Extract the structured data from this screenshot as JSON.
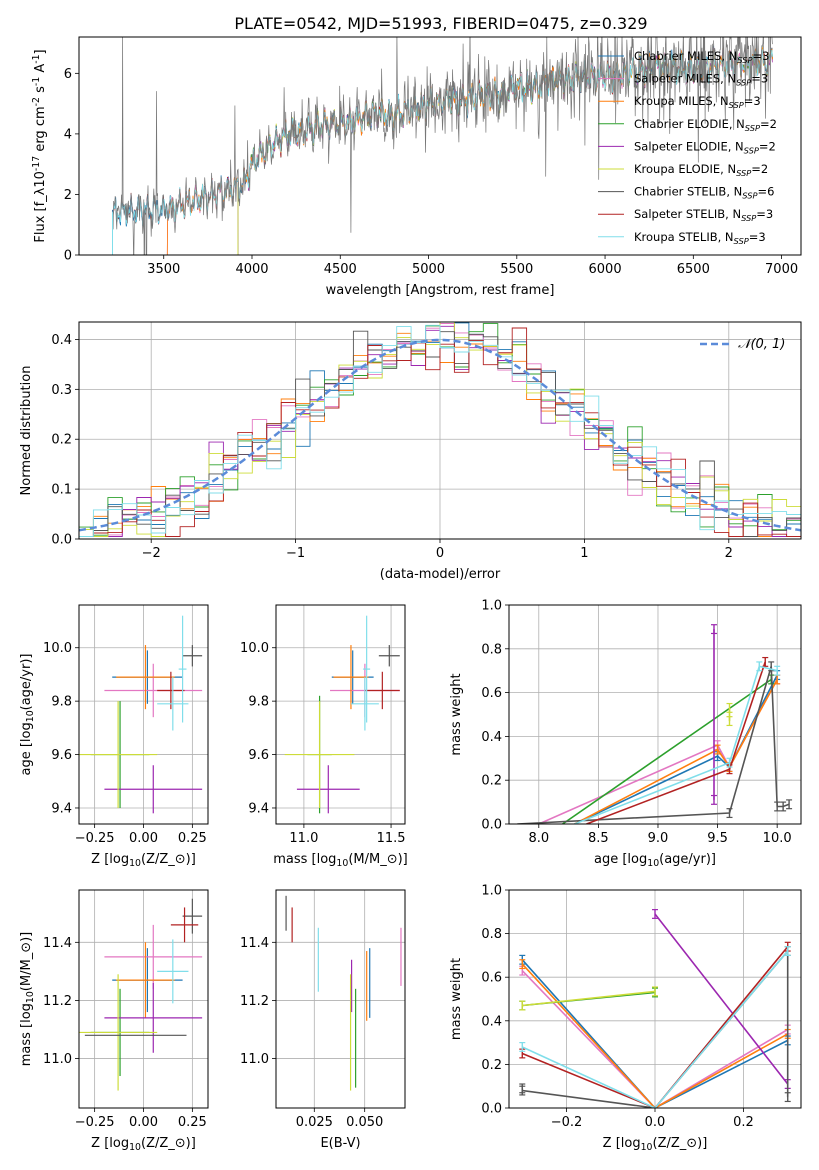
{
  "figure": {
    "title": "PLATE=0542, MJD=51993, FIBERID=0475, z=0.329"
  },
  "models": [
    {
      "label": "Chabrier MILES, N$_{SSP}$=3",
      "name": "Chabrier MILES",
      "nssp": "3",
      "color": "#1f77b4"
    },
    {
      "label": "Salpeter MILES, N$_{SSP}$=3",
      "name": "Salpeter MILES",
      "nssp": "3",
      "color": "#e377c2"
    },
    {
      "label": "Kroupa MILES, N$_{SSP}$=3",
      "name": "Kroupa MILES",
      "nssp": "3",
      "color": "#ff7f0e"
    },
    {
      "label": "Chabrier ELODIE, N$_{SSP}$=2",
      "name": "Chabrier ELODIE",
      "nssp": "2",
      "color": "#2ca02c"
    },
    {
      "label": "Salpeter ELODIE, N$_{SSP}$=2",
      "name": "Salpeter ELODIE",
      "nssp": "2",
      "color": "#9c27b0"
    },
    {
      "label": "Kroupa ELODIE, N$_{SSP}$=2",
      "name": "Kroupa ELODIE",
      "nssp": "2",
      "color": "#cddc39"
    },
    {
      "label": "Chabrier STELIB, N$_{SSP}$=6",
      "name": "Chabrier STELIB",
      "nssp": "6",
      "color": "#555555"
    },
    {
      "label": "Salpeter STELIB, N$_{SSP}$=3",
      "name": "Salpeter STELIB",
      "nssp": "3",
      "color": "#b22222"
    },
    {
      "label": "Kroupa STELIB, N$_{SSP}$=3",
      "name": "Kroupa STELIB",
      "nssp": "3",
      "color": "#80deea"
    }
  ],
  "chart_data": [
    {
      "id": "spectrum",
      "type": "line",
      "xlabel": "wavelength [Angstrom, rest frame]",
      "ylabel": "Flux [f$_\\lambda$10$^{-17}$ erg cm$^{-2}$ s$^{-1}$ A$^{-1}$]",
      "xlim": [
        3020,
        7110
      ],
      "ylim": [
        0,
        7.2
      ],
      "xticks": [
        3500,
        4000,
        4500,
        5000,
        5500,
        6000,
        6500,
        7000
      ],
      "yticks": [
        0,
        2,
        4,
        6
      ],
      "legend": "top-right",
      "continuum": {
        "x": [
          3210,
          3300,
          3400,
          3500,
          3600,
          3700,
          3800,
          3900,
          3950,
          4000,
          4100,
          4200,
          4300,
          4400,
          4500,
          4600,
          4700,
          4800,
          4900,
          5000,
          5100,
          5200,
          5300,
          5400,
          5500,
          5600,
          5700,
          5800,
          5900,
          6000,
          6100,
          6200,
          6300,
          6400,
          6500,
          6600,
          6700,
          6800,
          6900
        ],
        "y": [
          1.4,
          1.45,
          1.5,
          1.5,
          1.65,
          1.85,
          2.05,
          2.2,
          2.3,
          3.0,
          3.6,
          4.0,
          4.1,
          4.3,
          4.35,
          4.45,
          4.7,
          4.6,
          4.8,
          5.0,
          5.1,
          5.1,
          5.3,
          5.3,
          5.55,
          5.5,
          5.8,
          5.8,
          5.9,
          5.9,
          6.0,
          6.1,
          6.2,
          6.2,
          6.1,
          6.25,
          6.3,
          6.3,
          6.4
        ]
      },
      "model_start_wavelength": [
        3210,
        3520,
        3520,
        3920,
        3920,
        3920,
        3210,
        3210,
        3210
      ]
    },
    {
      "id": "residuals",
      "type": "histogram",
      "xlabel": "(data-model)/error",
      "ylabel": "Normed distribution",
      "xlim": [
        -2.5,
        2.5
      ],
      "ylim": [
        0,
        0.435
      ],
      "xticks": [
        -2,
        -1,
        0,
        1,
        2
      ],
      "yticks": [
        0.0,
        0.1,
        0.2,
        0.3,
        0.4
      ],
      "bin_width": 0.1,
      "reference_curve": {
        "name": "$\\mathcal{N}(0,1)$",
        "label": "𝒩(0, 1)",
        "color": "#5b8bd9",
        "mu": 0,
        "sigma": 1
      },
      "legend": "top-right",
      "grid": true
    },
    {
      "id": "age-vs-Z",
      "type": "errorbar",
      "xlabel": "Z [log$_{10}$(Z/Z$_\\odot$)]",
      "ylabel": "age  [log$_{10}$(age/yr)]",
      "xlim": [
        -0.33,
        0.33
      ],
      "ylim": [
        9.34,
        10.16
      ],
      "xticks": [
        -0.25,
        0.0,
        0.25
      ],
      "yticks": [
        9.4,
        9.6,
        9.8,
        10.0
      ],
      "grid": true,
      "points": [
        {
          "model": 0,
          "x": 0.02,
          "y": 9.89,
          "xerr": 0.18,
          "yerr": 0.1
        },
        {
          "model": 1,
          "x": 0.05,
          "y": 9.84,
          "xerr": 0.25,
          "yerr": 0.1
        },
        {
          "model": 2,
          "x": 0.01,
          "y": 9.89,
          "xerr": 0.15,
          "yerr": 0.12
        },
        {
          "model": 3,
          "x": -0.12,
          "y": 9.6,
          "xerr": 0.15,
          "yerr": 0.2
        },
        {
          "model": 4,
          "x": 0.05,
          "y": 9.47,
          "xerr": 0.25,
          "yerr": 0.09
        },
        {
          "model": 5,
          "x": -0.13,
          "y": 9.6,
          "xerr": 0.2,
          "yerr": 0.2
        },
        {
          "model": 6,
          "x": 0.25,
          "y": 9.97,
          "xerr": 0.05,
          "yerr": 0.04
        },
        {
          "model": 7,
          "x": 0.14,
          "y": 9.84,
          "xerr": 0.07,
          "yerr": 0.07
        },
        {
          "model": 8,
          "x": 0.15,
          "y": 9.79,
          "xerr": 0.08,
          "yerr": 0.1
        },
        {
          "model": 8,
          "x": 0.2,
          "y": 9.92,
          "xerr": 0.02,
          "yerr": 0.2
        }
      ]
    },
    {
      "id": "age-vs-mass",
      "type": "errorbar",
      "xlabel": "mass [log$_{10}$(M/M$_\\odot$)]",
      "ylabel": "",
      "xlim": [
        10.84,
        11.58
      ],
      "ylim": [
        9.34,
        10.16
      ],
      "xticks": [
        11.0,
        11.5
      ],
      "yticks": [
        9.4,
        9.6,
        9.8,
        10.0
      ],
      "grid": true,
      "points": [
        {
          "model": 0,
          "x": 11.28,
          "y": 9.89,
          "xerr": 0.12,
          "yerr": 0.1
        },
        {
          "model": 1,
          "x": 11.35,
          "y": 9.84,
          "xerr": 0.2,
          "yerr": 0.1
        },
        {
          "model": 2,
          "x": 11.27,
          "y": 9.89,
          "xerr": 0.1,
          "yerr": 0.12
        },
        {
          "model": 3,
          "x": 11.09,
          "y": 9.6,
          "xerr": 0.07,
          "yerr": 0.22
        },
        {
          "model": 4,
          "x": 11.14,
          "y": 9.47,
          "xerr": 0.18,
          "yerr": 0.09
        },
        {
          "model": 5,
          "x": 11.09,
          "y": 9.6,
          "xerr": 0.2,
          "yerr": 0.2
        },
        {
          "model": 6,
          "x": 11.49,
          "y": 9.97,
          "xerr": 0.06,
          "yerr": 0.04
        },
        {
          "model": 7,
          "x": 11.45,
          "y": 9.84,
          "xerr": 0.1,
          "yerr": 0.07
        },
        {
          "model": 8,
          "x": 11.35,
          "y": 9.79,
          "xerr": 0.08,
          "yerr": 0.1
        },
        {
          "model": 8,
          "x": 11.36,
          "y": 9.92,
          "xerr": 0.02,
          "yerr": 0.2
        }
      ]
    },
    {
      "id": "massweight-vs-age",
      "type": "line",
      "xlabel": "age  [log$_{10}$(age/yr)]",
      "ylabel": "mass weight",
      "xlim": [
        7.75,
        10.2
      ],
      "ylim": [
        0,
        1.0
      ],
      "xticks": [
        8.0,
        8.5,
        9.0,
        9.5,
        10.0
      ],
      "yticks": [
        0.0,
        0.2,
        0.4,
        0.6,
        0.8,
        1.0
      ],
      "grid": true,
      "series": [
        {
          "model": 0,
          "x": [
            8.3,
            9.5,
            9.6,
            10.0
          ],
          "y": [
            0.0,
            0.31,
            0.26,
            0.68
          ],
          "yerr": [
            0,
            0.02,
            0.02,
            0.02
          ]
        },
        {
          "model": 1,
          "x": [
            8.0,
            9.5,
            9.6,
            10.0
          ],
          "y": [
            0.0,
            0.36,
            0.26,
            0.66
          ],
          "yerr": [
            0,
            0.02,
            0.02,
            0.02
          ]
        },
        {
          "model": 2,
          "x": [
            8.3,
            9.5,
            9.6,
            10.0
          ],
          "y": [
            0.0,
            0.34,
            0.26,
            0.66
          ],
          "yerr": [
            0,
            0.02,
            0.02,
            0.02
          ]
        },
        {
          "model": 3,
          "x": [
            8.2,
            9.95
          ],
          "y": [
            0.0,
            0.66
          ],
          "yerr": [
            0,
            0.02
          ]
        },
        {
          "model": 4,
          "x": [
            9.47,
            9.47
          ],
          "y": [
            0.11,
            0.89
          ],
          "yerr": [
            0.02,
            0.02
          ]
        },
        {
          "model": 5,
          "x": [
            9.6,
            9.6
          ],
          "y": [
            0.47,
            0.53
          ],
          "yerr": [
            0.02,
            0.02
          ]
        },
        {
          "model": 6,
          "x": [
            7.82,
            9.6,
            9.95,
            10.0,
            10.05,
            10.1
          ],
          "y": [
            0.0,
            0.05,
            0.72,
            0.08,
            0.08,
            0.09
          ],
          "yerr": [
            0,
            0.02,
            0.02,
            0.02,
            0.02,
            0.02
          ]
        },
        {
          "model": 7,
          "x": [
            8.4,
            9.6,
            9.9
          ],
          "y": [
            0.0,
            0.25,
            0.74
          ],
          "yerr": [
            0,
            0.02,
            0.02
          ]
        },
        {
          "model": 8,
          "x": [
            8.3,
            9.6,
            9.85,
            10.0
          ],
          "y": [
            0.0,
            0.28,
            0.72,
            0.7
          ],
          "yerr": [
            0,
            0.02,
            0.02,
            0.02
          ]
        }
      ]
    },
    {
      "id": "mass-vs-Z",
      "type": "errorbar",
      "xlabel": "Z [log$_{10}$(Z/Z$_\\odot$)]",
      "ylabel": "mass [log$_{10}$(M/M$_\\odot$)]",
      "xlim": [
        -0.33,
        0.33
      ],
      "ylim": [
        10.83,
        11.58
      ],
      "xticks": [
        -0.25,
        0.0,
        0.25
      ],
      "yticks": [
        11.0,
        11.2,
        11.4
      ],
      "grid": true,
      "points": [
        {
          "model": 0,
          "x": 0.02,
          "y": 11.27,
          "xerr": 0.18,
          "yerr": 0.11
        },
        {
          "model": 1,
          "x": 0.05,
          "y": 11.35,
          "xerr": 0.25,
          "yerr": 0.11
        },
        {
          "model": 2,
          "x": 0.01,
          "y": 11.27,
          "xerr": 0.15,
          "yerr": 0.13
        },
        {
          "model": 3,
          "x": -0.12,
          "y": 11.09,
          "xerr": 0.15,
          "yerr": 0.15
        },
        {
          "model": 4,
          "x": 0.05,
          "y": 11.14,
          "xerr": 0.25,
          "yerr": 0.12
        },
        {
          "model": 5,
          "x": -0.13,
          "y": 11.09,
          "xerr": 0.2,
          "yerr": 0.2
        },
        {
          "model": 6,
          "x": 0.25,
          "y": 11.49,
          "xerr": 0.05,
          "yerr": 0.06
        },
        {
          "model": 6,
          "x": -0.04,
          "y": 11.08,
          "xerr": 0.26,
          "yerr": 0.0
        },
        {
          "model": 7,
          "x": 0.21,
          "y": 11.46,
          "xerr": 0.07,
          "yerr": 0.06
        },
        {
          "model": 8,
          "x": 0.15,
          "y": 11.3,
          "xerr": 0.08,
          "yerr": 0.11
        }
      ]
    },
    {
      "id": "mass-vs-ebv",
      "type": "errorbar",
      "xlabel": "E(B-V)",
      "ylabel": "",
      "xlim": [
        0.006,
        0.07
      ],
      "ylim": [
        10.83,
        11.58
      ],
      "xticks": [
        0.025,
        0.05
      ],
      "xticklabels": [
        "0.025",
        "0.050"
      ],
      "yticks": [
        11.0,
        11.2,
        11.4
      ],
      "grid": true,
      "points": [
        {
          "model": 0,
          "x": 0.0525,
          "y": 11.26,
          "xerr": 0.0,
          "yerr": 0.12
        },
        {
          "model": 1,
          "x": 0.068,
          "y": 11.35,
          "xerr": 0.0,
          "yerr": 0.1
        },
        {
          "model": 2,
          "x": 0.051,
          "y": 11.25,
          "xerr": 0.0,
          "yerr": 0.12
        },
        {
          "model": 3,
          "x": 0.0455,
          "y": 11.07,
          "xerr": 0.0,
          "yerr": 0.17
        },
        {
          "model": 4,
          "x": 0.0435,
          "y": 11.25,
          "xerr": 0.0,
          "yerr": 0.09
        },
        {
          "model": 5,
          "x": 0.043,
          "y": 11.09,
          "xerr": 0.0,
          "yerr": 0.2
        },
        {
          "model": 6,
          "x": 0.011,
          "y": 11.5,
          "xerr": 0.0,
          "yerr": 0.06
        },
        {
          "model": 7,
          "x": 0.014,
          "y": 11.46,
          "xerr": 0.0,
          "yerr": 0.06
        },
        {
          "model": 8,
          "x": 0.027,
          "y": 11.34,
          "xerr": 0.0,
          "yerr": 0.11
        }
      ]
    },
    {
      "id": "massweight-vs-Z",
      "type": "line",
      "xlabel": "Z [log$_{10}$(Z/Z$_\\odot$)]",
      "ylabel": "mass weight",
      "xlim": [
        -0.33,
        0.33
      ],
      "ylim": [
        0,
        1.0
      ],
      "xticks": [
        -0.2,
        0.0,
        0.2
      ],
      "yticks": [
        0.0,
        0.2,
        0.4,
        0.6,
        0.8,
        1.0
      ],
      "grid": true,
      "series": [
        {
          "model": 0,
          "x": [
            -0.3,
            0.0,
            0.3
          ],
          "y": [
            0.68,
            0.0,
            0.31
          ],
          "yerr": [
            0.02,
            0,
            0.02
          ]
        },
        {
          "model": 1,
          "x": [
            -0.3,
            0.0,
            0.3
          ],
          "y": [
            0.63,
            0.0,
            0.36
          ],
          "yerr": [
            0.02,
            0,
            0.02
          ]
        },
        {
          "model": 2,
          "x": [
            -0.3,
            0.0,
            0.3
          ],
          "y": [
            0.66,
            0.0,
            0.34
          ],
          "yerr": [
            0.02,
            0,
            0.02
          ]
        },
        {
          "model": 3,
          "x": [
            -0.3,
            0.0
          ],
          "y": [
            0.47,
            0.53
          ],
          "yerr": [
            0.02,
            0.02
          ]
        },
        {
          "model": 4,
          "x": [
            0.0,
            0.3
          ],
          "y": [
            0.89,
            0.11
          ],
          "yerr": [
            0.02,
            0.02
          ]
        },
        {
          "model": 5,
          "x": [
            -0.3,
            0.0
          ],
          "y": [
            0.47,
            0.535
          ],
          "yerr": [
            0.02,
            0.02
          ]
        },
        {
          "model": 6,
          "x": [
            -0.3,
            -0.3,
            0.0,
            0.3,
            0.3
          ],
          "y": [
            0.09,
            0.08,
            0.0,
            0.72,
            0.05
          ],
          "yerr": [
            0.02,
            0.02,
            0,
            0.02,
            0.02
          ]
        },
        {
          "model": 7,
          "x": [
            -0.3,
            0.0,
            0.3
          ],
          "y": [
            0.25,
            0.0,
            0.74
          ],
          "yerr": [
            0.02,
            0,
            0.02
          ]
        },
        {
          "model": 8,
          "x": [
            -0.3,
            0.0,
            0.3
          ],
          "y": [
            0.28,
            0.0,
            0.72
          ],
          "yerr": [
            0.02,
            0,
            0.02
          ]
        }
      ]
    }
  ]
}
